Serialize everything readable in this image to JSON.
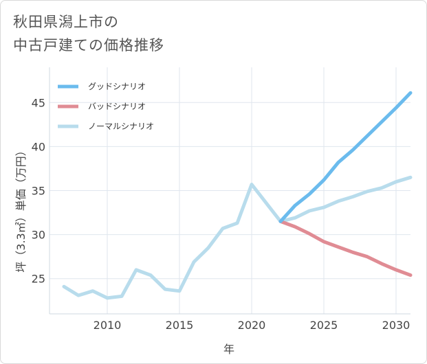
{
  "title_lines": [
    "秋田県潟上市の",
    "中古戸建ての価格推移"
  ],
  "chart_data": {
    "type": "line",
    "title": "秋田県潟上市の 中古戸建ての価格推移",
    "xlabel": "年",
    "ylabel": "坪（3.3㎡）単価（万円）",
    "xlim": [
      2006,
      2031
    ],
    "ylim": [
      21,
      49
    ],
    "x_ticks": [
      2010,
      2015,
      2020,
      2025,
      2030
    ],
    "y_ticks": [
      25,
      30,
      35,
      40,
      45
    ],
    "grid": true,
    "legend_position": "top-left",
    "series": [
      {
        "name": "グッドシナリオ",
        "color": "#6bbbed",
        "x": [
          2022,
          2023,
          2024,
          2025,
          2026,
          2027,
          2028,
          2029,
          2030,
          2031
        ],
        "y": [
          31.5,
          33.3,
          34.6,
          36.2,
          38.2,
          39.6,
          41.2,
          42.8,
          44.4,
          46.1
        ]
      },
      {
        "name": "バッドシナリオ",
        "color": "#e08c94",
        "x": [
          2022,
          2023,
          2024,
          2025,
          2026,
          2027,
          2028,
          2029,
          2030,
          2031
        ],
        "y": [
          31.5,
          30.9,
          30.1,
          29.2,
          28.6,
          28.0,
          27.5,
          26.7,
          26.0,
          25.4
        ]
      },
      {
        "name": "ノーマルシナリオ",
        "color": "#b8dcec",
        "x": [
          2007,
          2008,
          2009,
          2010,
          2011,
          2012,
          2013,
          2014,
          2015,
          2016,
          2017,
          2018,
          2019,
          2020,
          2021,
          2022,
          2023,
          2024,
          2025,
          2026,
          2027,
          2028,
          2029,
          2030,
          2031
        ],
        "y": [
          24.1,
          23.1,
          23.6,
          22.8,
          23.0,
          26.0,
          25.4,
          23.8,
          23.6,
          26.9,
          28.5,
          30.7,
          31.3,
          35.7,
          33.6,
          31.5,
          31.9,
          32.7,
          33.1,
          33.8,
          34.3,
          34.9,
          35.3,
          36.0,
          36.5
        ]
      }
    ]
  }
}
